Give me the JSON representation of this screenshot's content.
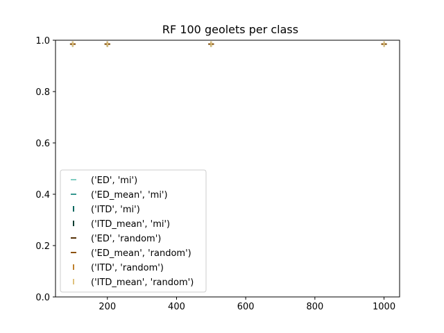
{
  "chart_data": {
    "type": "scatter",
    "title": "RF 100 geolets per class",
    "xlabel": "",
    "ylabel": "",
    "xlim": [
      50,
      1045
    ],
    "ylim": [
      0,
      1
    ],
    "xticks": [
      200,
      400,
      600,
      800,
      1000
    ],
    "xtick_labels": [
      "200",
      "400",
      "600",
      "800",
      "1000"
    ],
    "yticks": [
      0,
      0.2,
      0.4,
      0.6,
      0.8,
      1.0
    ],
    "ytick_labels": [
      "0.0",
      "0.2",
      "0.4",
      "0.6",
      "0.8",
      "1.0"
    ],
    "grid": false,
    "legend_position": "lower-left",
    "x": [
      100,
      200,
      500,
      1000
    ],
    "series": [
      {
        "name": "('ED', 'mi')",
        "color": "#80cdc1",
        "marker": "hline",
        "values": [
          0.985,
          0.985,
          0.985,
          0.985
        ]
      },
      {
        "name": "('ED_mean', 'mi')",
        "color": "#35978f",
        "marker": "hline",
        "values": [
          0.985,
          0.985,
          0.985,
          0.985
        ]
      },
      {
        "name": "('ITD', 'mi')",
        "color": "#01665e",
        "marker": "vline",
        "values": [
          0.985,
          0.985,
          0.985,
          0.985
        ]
      },
      {
        "name": "('ITD_mean', 'mi')",
        "color": "#003c30",
        "marker": "vline",
        "values": [
          0.985,
          0.985,
          0.985,
          0.985
        ]
      },
      {
        "name": "('ED', 'random')",
        "color": "#543005",
        "marker": "hline",
        "values": [
          0.985,
          0.985,
          0.985,
          0.985
        ]
      },
      {
        "name": "('ED_mean', 'random')",
        "color": "#8c510a",
        "marker": "hline",
        "values": [
          0.985,
          0.985,
          0.985,
          0.985
        ]
      },
      {
        "name": "('ITD', 'random')",
        "color": "#bf812d",
        "marker": "vline",
        "values": [
          0.985,
          0.985,
          0.985,
          0.985
        ]
      },
      {
        "name": "('ITD_mean', 'random')",
        "color": "#dfc27d",
        "marker": "vline",
        "values": [
          0.985,
          0.985,
          0.985,
          0.985
        ]
      }
    ]
  }
}
